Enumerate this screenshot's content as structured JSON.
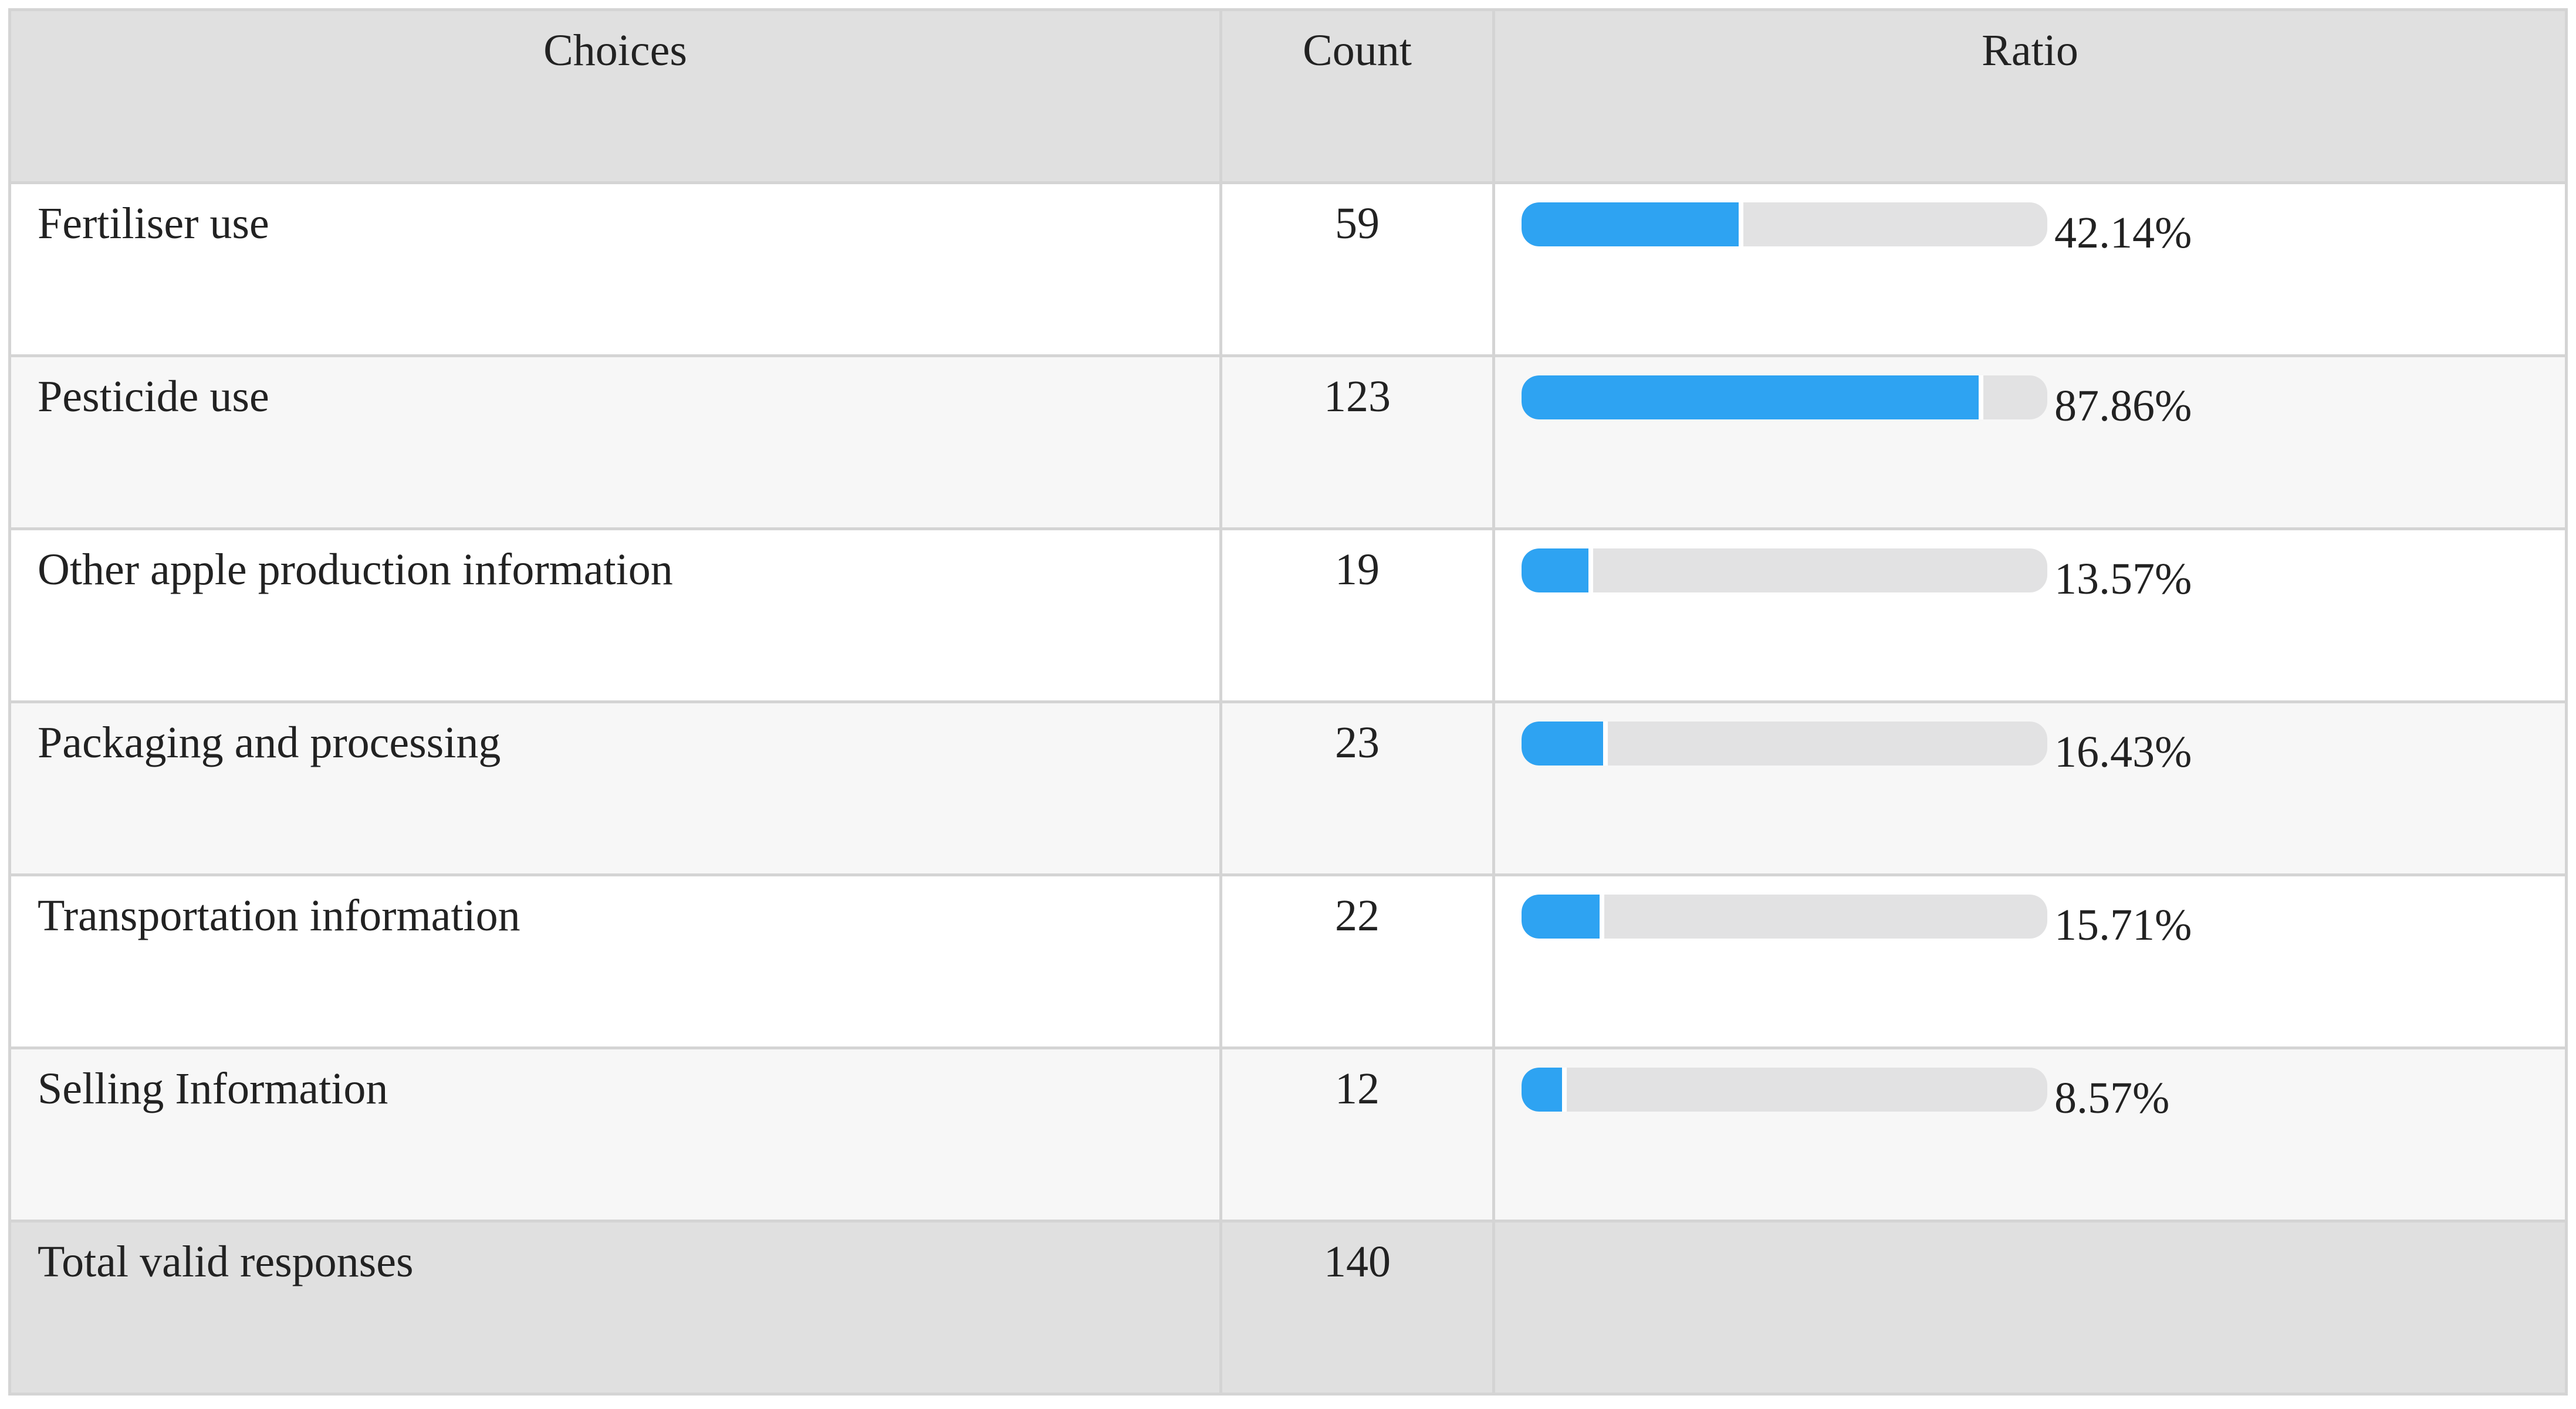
{
  "table": {
    "headers": [
      "Choices",
      "Count",
      "Ratio"
    ],
    "rows": [
      {
        "choice": "Fertiliser use",
        "count": 59,
        "ratio": {
          "value": 42.14,
          "label": "42.14%"
        }
      },
      {
        "choice": "Pesticide use",
        "count": 123,
        "ratio": {
          "value": 87.86,
          "label": "87.86%"
        }
      },
      {
        "choice": "Other apple production information",
        "count": 19,
        "ratio": {
          "value": 13.57,
          "label": "13.57%"
        }
      },
      {
        "choice": "Packaging and processing",
        "count": 23,
        "ratio": {
          "value": 16.43,
          "label": "16.43%"
        }
      },
      {
        "choice": "Transportation information",
        "count": 22,
        "ratio": {
          "value": 15.71,
          "label": "15.71%"
        }
      },
      {
        "choice": "Selling Information",
        "count": 12,
        "ratio": {
          "value": 8.57,
          "label": "8.57%"
        }
      }
    ],
    "total": {
      "label": "Total valid responses",
      "count": 140
    }
  }
}
